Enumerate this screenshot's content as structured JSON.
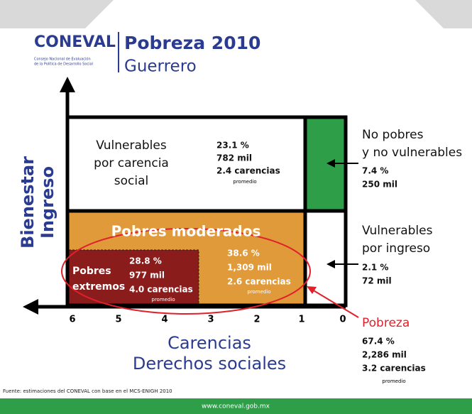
{
  "header": {
    "logo": "CONEVAL",
    "logo_caption": [
      "Consejo Nacional de Evaluación",
      "de la Política de Desarrollo Social"
    ],
    "title": "Pobreza 2010",
    "subtitle": "Guerrero"
  },
  "axes": {
    "y_label": [
      "Bienestar",
      "Ingreso"
    ],
    "x_label": [
      "Carencias",
      "Derechos sociales"
    ],
    "x_numbers": [
      "6",
      "5",
      "4",
      "3",
      "2",
      "1",
      "0"
    ]
  },
  "boxes": {
    "vulnerables_carencia": {
      "label": [
        "Vulnerables",
        "por carencia",
        "social"
      ],
      "percent": "23.1 %",
      "people": "782 mil",
      "deprivations": "2.4 carencias",
      "note": "promedio"
    },
    "no_pobres": {
      "label": [
        "No pobres",
        "y no vulnerables"
      ],
      "percent": "7.4 %",
      "people": "250 mil"
    },
    "pobres_moderados": {
      "label": "Pobres moderados",
      "percent": "38.6 %",
      "people": "1,309 mil",
      "deprivations": "2.6 carencias",
      "note": "promedio"
    },
    "pobres_extremos": {
      "label": [
        "Pobres",
        "extremos"
      ],
      "percent": "28.8 %",
      "people": "977 mil",
      "deprivations": "4.0 carencias",
      "note": "promedio"
    },
    "vulnerables_ingreso": {
      "label": [
        "Vulnerables",
        "por ingreso"
      ],
      "percent": "2.1 %",
      "people": "72 mil"
    },
    "pobreza": {
      "label": "Pobreza",
      "percent": "67.4 %",
      "people": "2,286 mil",
      "deprivations": "3.2 carencias",
      "note": "promedio"
    }
  },
  "footer": {
    "source": "Fuente: estimaciones del CONEVAL con base en el MCS-ENIGH 2010",
    "url": "www.coneval.gob.mx"
  }
}
